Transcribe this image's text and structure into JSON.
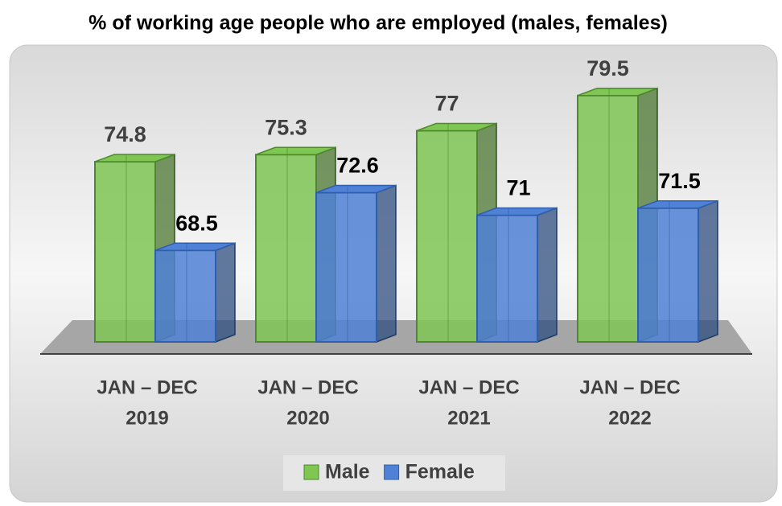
{
  "chart_data": {
    "type": "bar3d",
    "title": "% of working age people who are employed (males, females)",
    "categories": [
      [
        "JAN – DEC",
        "2019"
      ],
      [
        "JAN – DEC",
        "2020"
      ],
      [
        "JAN – DEC",
        "2021"
      ],
      [
        "JAN – DEC",
        "2022"
      ]
    ],
    "series": [
      {
        "name": "Male",
        "color": "#7fc653",
        "values": [
          74.8,
          75.3,
          77,
          79.5
        ]
      },
      {
        "name": "Female",
        "color": "#4f81d6",
        "values": [
          68.5,
          72.6,
          71,
          71.5
        ]
      }
    ],
    "ylim": [
      62,
      80
    ],
    "legend": "bottom"
  }
}
